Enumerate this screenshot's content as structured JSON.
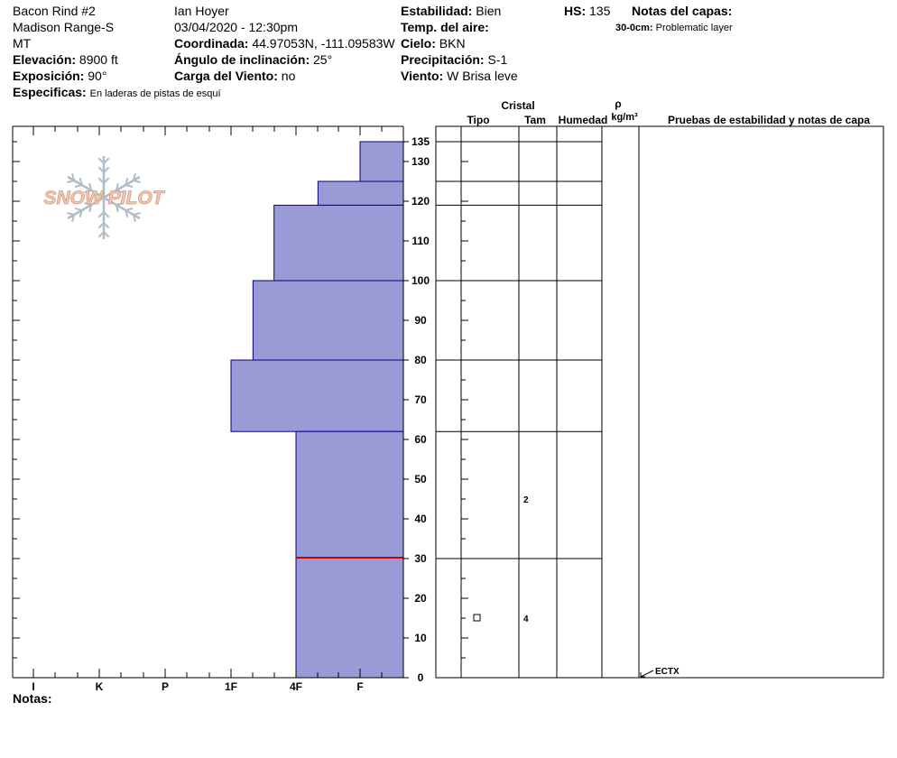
{
  "header": {
    "site": "Bacon Rind #2",
    "range": "Madison Range-S",
    "state": "MT",
    "elevation_label": "Elevación:",
    "elevation": "8900 ft",
    "aspect_label": "Exposición:",
    "aspect": "90°",
    "specifics_label": "Especificas:",
    "specifics": "En laderas de pistas de esquí",
    "observer": "Ian Hoyer",
    "datetime": "03/04/2020 - 12:30pm",
    "coord_label": "Coordinada:",
    "coord": "44.97053N, -111.09583W",
    "slope_label": "Ángulo de inclinación:",
    "slope": "25°",
    "wind_load_label": "Carga del Viento:",
    "wind_load": "no",
    "stability_label": "Estabilidad:",
    "stability": "Bien",
    "air_temp_label": "Temp. del aire:",
    "air_temp": "",
    "sky_label": "Cielo:",
    "sky": "BKN",
    "precip_label": "Precipitación:",
    "precip": "S-1",
    "wind_label": "Viento:",
    "wind": "W Brisa leve",
    "hs_label": "HS:",
    "hs": "135",
    "layer_notes_label": "Notas del capas:",
    "layer_note_depth": "30-0cm:",
    "layer_note_text": "Problematic layer",
    "notes_label": "Notas:"
  },
  "logo": {
    "text": "SNOW PILOT"
  },
  "columns": {
    "crystal": "Cristal",
    "type": "Tipo",
    "size": "Tam",
    "moisture": "Humedad",
    "rho": "ρ",
    "density_unit": "kg/m³",
    "tests": "Pruebas de estabilidad y notas de capa"
  },
  "colors": {
    "hardness_fill": "#9a9ad6",
    "hardness_stroke": "#000080",
    "weak_layer": "#cc0000",
    "logo_text": "#f0c8b4",
    "logo_flake": "#b0bcc6"
  },
  "chart_data": {
    "type": "bar",
    "orientation": "horizontal",
    "title": "",
    "xlabel": "",
    "ylabel": "",
    "ylim": [
      0,
      135
    ],
    "hardness_scale": [
      "I",
      "K",
      "P",
      "1F",
      "4F",
      "F"
    ],
    "y_tick_labels": [
      0,
      10,
      20,
      30,
      40,
      50,
      60,
      70,
      80,
      90,
      100,
      110,
      120,
      130,
      135
    ],
    "layers": [
      {
        "bottom": 125,
        "top": 135,
        "hardness": "F"
      },
      {
        "bottom": 119,
        "top": 125,
        "hardness": "4F+"
      },
      {
        "bottom": 100,
        "top": 119,
        "hardness": "4F-"
      },
      {
        "bottom": 80,
        "top": 100,
        "hardness": "1F+"
      },
      {
        "bottom": 62,
        "top": 80,
        "hardness": "1F"
      },
      {
        "bottom": 0,
        "top": 62,
        "hardness": "4F"
      }
    ],
    "boundaries": [
      135,
      125,
      119,
      100,
      80,
      62,
      30
    ],
    "weak_layer_depth": 30,
    "crystals": [
      {
        "height": 45,
        "size": "2"
      },
      {
        "height": 15,
        "size": "4",
        "type": "faceted"
      }
    ],
    "tests": [
      {
        "height": 0,
        "result": "ECTX"
      }
    ]
  }
}
